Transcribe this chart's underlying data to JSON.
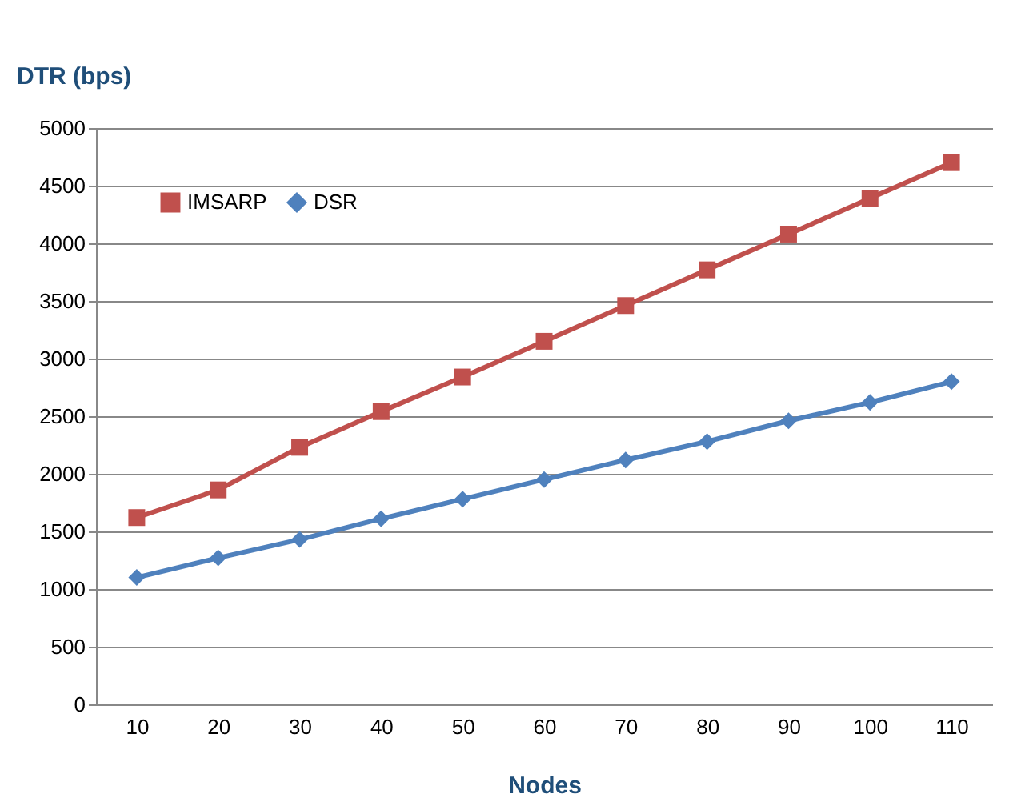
{
  "chart_data": {
    "type": "line",
    "ylabel": "DTR (bps)",
    "xlabel": "Nodes",
    "categories": [
      "10",
      "20",
      "30",
      "40",
      "50",
      "60",
      "70",
      "80",
      "90",
      "100",
      "110"
    ],
    "series": [
      {
        "name": "IMSARP",
        "color": "#c0504d",
        "marker": "square",
        "values": [
          1620,
          1860,
          2230,
          2540,
          2840,
          3150,
          3460,
          3770,
          4080,
          4390,
          4700
        ]
      },
      {
        "name": "DSR",
        "color": "#4f81bd",
        "marker": "diamond",
        "values": [
          1100,
          1270,
          1430,
          1610,
          1780,
          1950,
          2120,
          2280,
          2460,
          2620,
          2800
        ]
      }
    ],
    "ylim": [
      0,
      5000
    ],
    "yticks": [
      0,
      500,
      1000,
      1500,
      2000,
      2500,
      3000,
      3500,
      4000,
      4500,
      5000
    ],
    "grid": "y",
    "legend": "top left",
    "line_style": "solid"
  }
}
